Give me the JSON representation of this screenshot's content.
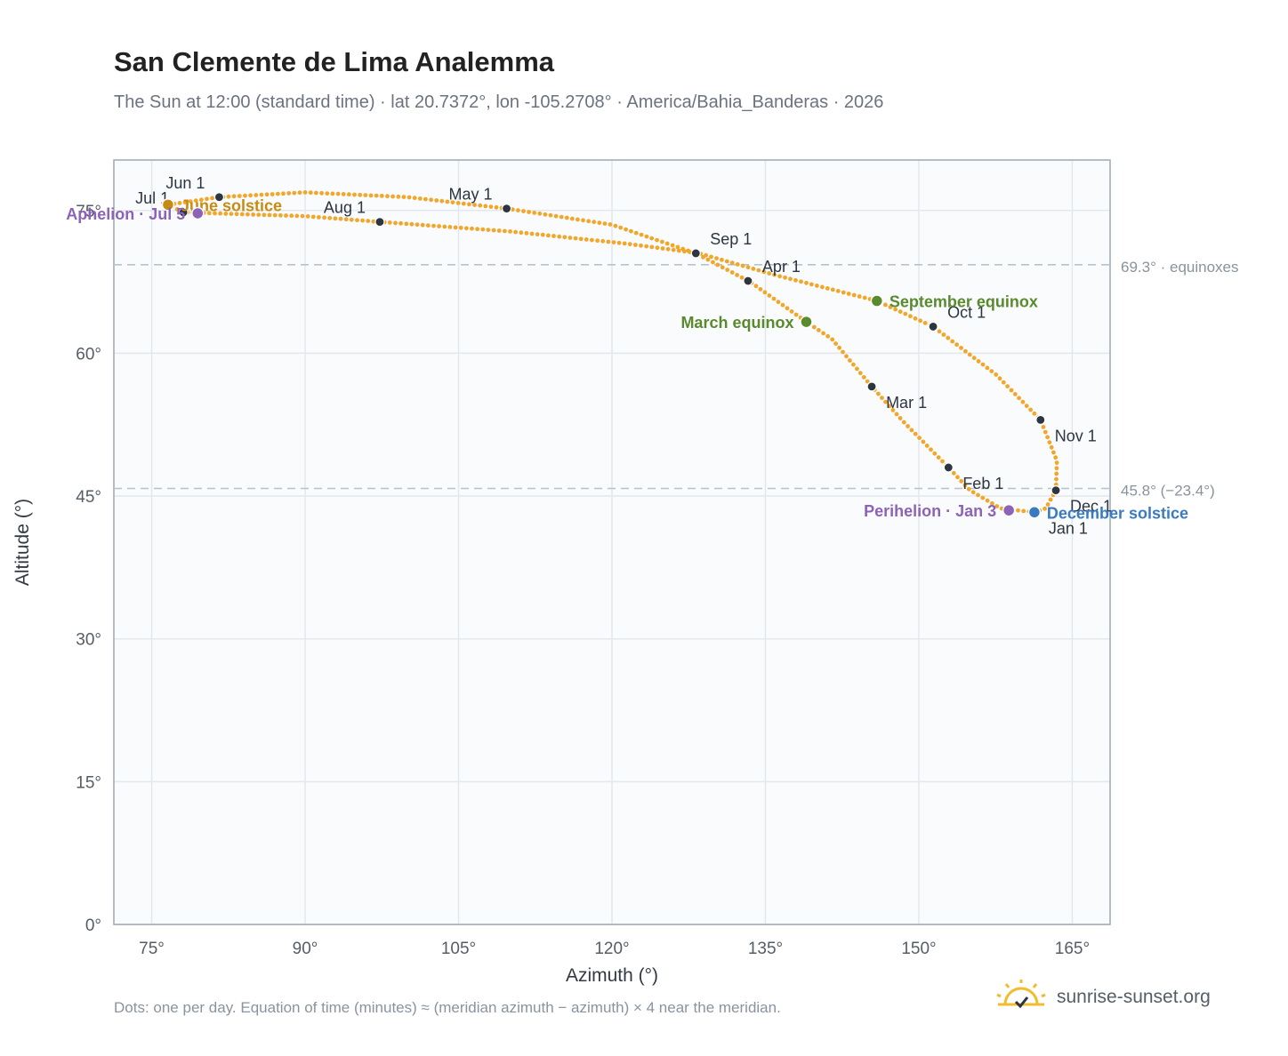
{
  "title": "San Clemente de Lima Analemma",
  "subtitle": "The Sun at 12:00 (standard time) · lat 20.7372°, lon -105.2708° · America/Bahia_Banderas · 2026",
  "footnote": "Dots: one per day. Equation of time (minutes) ≈ (meridian azimuth − azimuth) × 4 near the meridian.",
  "brand": "sunrise-sunset.org",
  "brand_icon": "sun-logo-icon",
  "colors": {
    "path": "#f2a62a",
    "month_marker": "#2d3540",
    "equinox": "#5a8a2e",
    "december_solstice": "#3a7bbf",
    "june_solstice": "#c68b12",
    "apsis": "#8c63b8",
    "reference_line": "#b8c2cc",
    "plot_background": "#f9fbfd",
    "grid": "#e3e8ed"
  },
  "chart_data": {
    "type": "scatter",
    "title": "San Clemente de Lima Analemma",
    "xlabel": "Azimuth (°)",
    "ylabel": "Altitude (°)",
    "xlim": [
      71.3,
      168.7
    ],
    "ylim": [
      0,
      80.3
    ],
    "xticks": [
      75,
      90,
      105,
      120,
      135,
      150,
      165
    ],
    "xtick_labels": [
      "75°",
      "90°",
      "105°",
      "120°",
      "135°",
      "150°",
      "165°"
    ],
    "yticks": [
      0,
      15,
      30,
      45,
      60,
      75
    ],
    "ytick_labels": [
      "0°",
      "15°",
      "30°",
      "45°",
      "60°",
      "75°"
    ],
    "grid": true,
    "path_nodes": [
      {
        "az": 161.3,
        "alt": 43.3
      },
      {
        "az": 158.0,
        "alt": 43.7
      },
      {
        "az": 155.0,
        "alt": 45.6
      },
      {
        "az": 152.9,
        "alt": 48.0
      },
      {
        "az": 148.5,
        "alt": 52.8
      },
      {
        "az": 145.4,
        "alt": 56.5
      },
      {
        "az": 141.5,
        "alt": 61.5
      },
      {
        "az": 139.0,
        "alt": 63.3
      },
      {
        "az": 133.5,
        "alt": 67.5
      },
      {
        "az": 128.2,
        "alt": 70.5
      },
      {
        "az": 120.0,
        "alt": 73.5
      },
      {
        "az": 109.7,
        "alt": 75.2
      },
      {
        "az": 100.0,
        "alt": 76.4
      },
      {
        "az": 90.0,
        "alt": 76.9
      },
      {
        "az": 81.6,
        "alt": 76.4
      },
      {
        "az": 76.6,
        "alt": 75.6
      },
      {
        "az": 78.1,
        "alt": 74.8
      },
      {
        "az": 84.0,
        "alt": 74.6
      },
      {
        "az": 90.0,
        "alt": 74.4
      },
      {
        "az": 97.3,
        "alt": 73.8
      },
      {
        "az": 110.0,
        "alt": 72.8
      },
      {
        "az": 121.5,
        "alt": 71.5
      },
      {
        "az": 128.5,
        "alt": 70.5
      },
      {
        "az": 136.0,
        "alt": 68.2
      },
      {
        "az": 145.9,
        "alt": 65.5
      },
      {
        "az": 151.4,
        "alt": 62.8
      },
      {
        "az": 157.5,
        "alt": 57.8
      },
      {
        "az": 161.9,
        "alt": 53.0
      },
      {
        "az": 163.5,
        "alt": 48.7
      },
      {
        "az": 163.4,
        "alt": 45.6
      },
      {
        "az": 162.4,
        "alt": 43.7
      },
      {
        "az": 161.3,
        "alt": 43.3
      }
    ],
    "month_markers": [
      {
        "label": "Jan 1",
        "az": 161.3,
        "alt": 43.3,
        "anchor": "below-right"
      },
      {
        "label": "Feb 1",
        "az": 152.9,
        "alt": 48.0,
        "anchor": "below-right"
      },
      {
        "label": "Mar 1",
        "az": 145.4,
        "alt": 56.5,
        "anchor": "below-right"
      },
      {
        "label": "Apr 1",
        "az": 133.3,
        "alt": 67.6,
        "anchor": "above-right"
      },
      {
        "label": "May 1",
        "az": 109.7,
        "alt": 75.2,
        "anchor": "above-left"
      },
      {
        "label": "Jun 1",
        "az": 81.6,
        "alt": 76.4,
        "anchor": "above-left"
      },
      {
        "label": "Jul 1",
        "az": 78.1,
        "alt": 74.8,
        "anchor": "above-left"
      },
      {
        "label": "Aug 1",
        "az": 97.3,
        "alt": 73.8,
        "anchor": "above-left"
      },
      {
        "label": "Sep 1",
        "az": 128.2,
        "alt": 70.5,
        "anchor": "above-right"
      },
      {
        "label": "Oct 1",
        "az": 151.4,
        "alt": 62.8,
        "anchor": "above-right"
      },
      {
        "label": "Nov 1",
        "az": 161.9,
        "alt": 53.0,
        "anchor": "below-right"
      },
      {
        "label": "Dec 1",
        "az": 163.4,
        "alt": 45.6,
        "anchor": "below-right"
      }
    ],
    "events": [
      {
        "label": "March equinox",
        "az": 139.0,
        "alt": 63.3,
        "color_key": "equinox",
        "label_side": "left"
      },
      {
        "label": "September equinox",
        "az": 145.9,
        "alt": 65.5,
        "color_key": "equinox",
        "label_side": "right"
      },
      {
        "label": "December solstice",
        "az": 161.3,
        "alt": 43.3,
        "color_key": "december_solstice",
        "label_side": "right"
      },
      {
        "label": "June solstice",
        "az": 76.6,
        "alt": 75.6,
        "color_key": "june_solstice",
        "label_side": "right"
      },
      {
        "label": "Perihelion · Jan 3",
        "az": 158.8,
        "alt": 43.5,
        "color_key": "apsis",
        "label_side": "left"
      },
      {
        "label": "Aphelion · Jul 5",
        "az": 79.5,
        "alt": 74.7,
        "color_key": "apsis",
        "label_side": "left"
      }
    ],
    "reference_lines": [
      {
        "alt": 69.3,
        "label": "69.3° · equinoxes"
      },
      {
        "alt": 45.8,
        "label": "45.8° (−23.4°)"
      }
    ]
  }
}
